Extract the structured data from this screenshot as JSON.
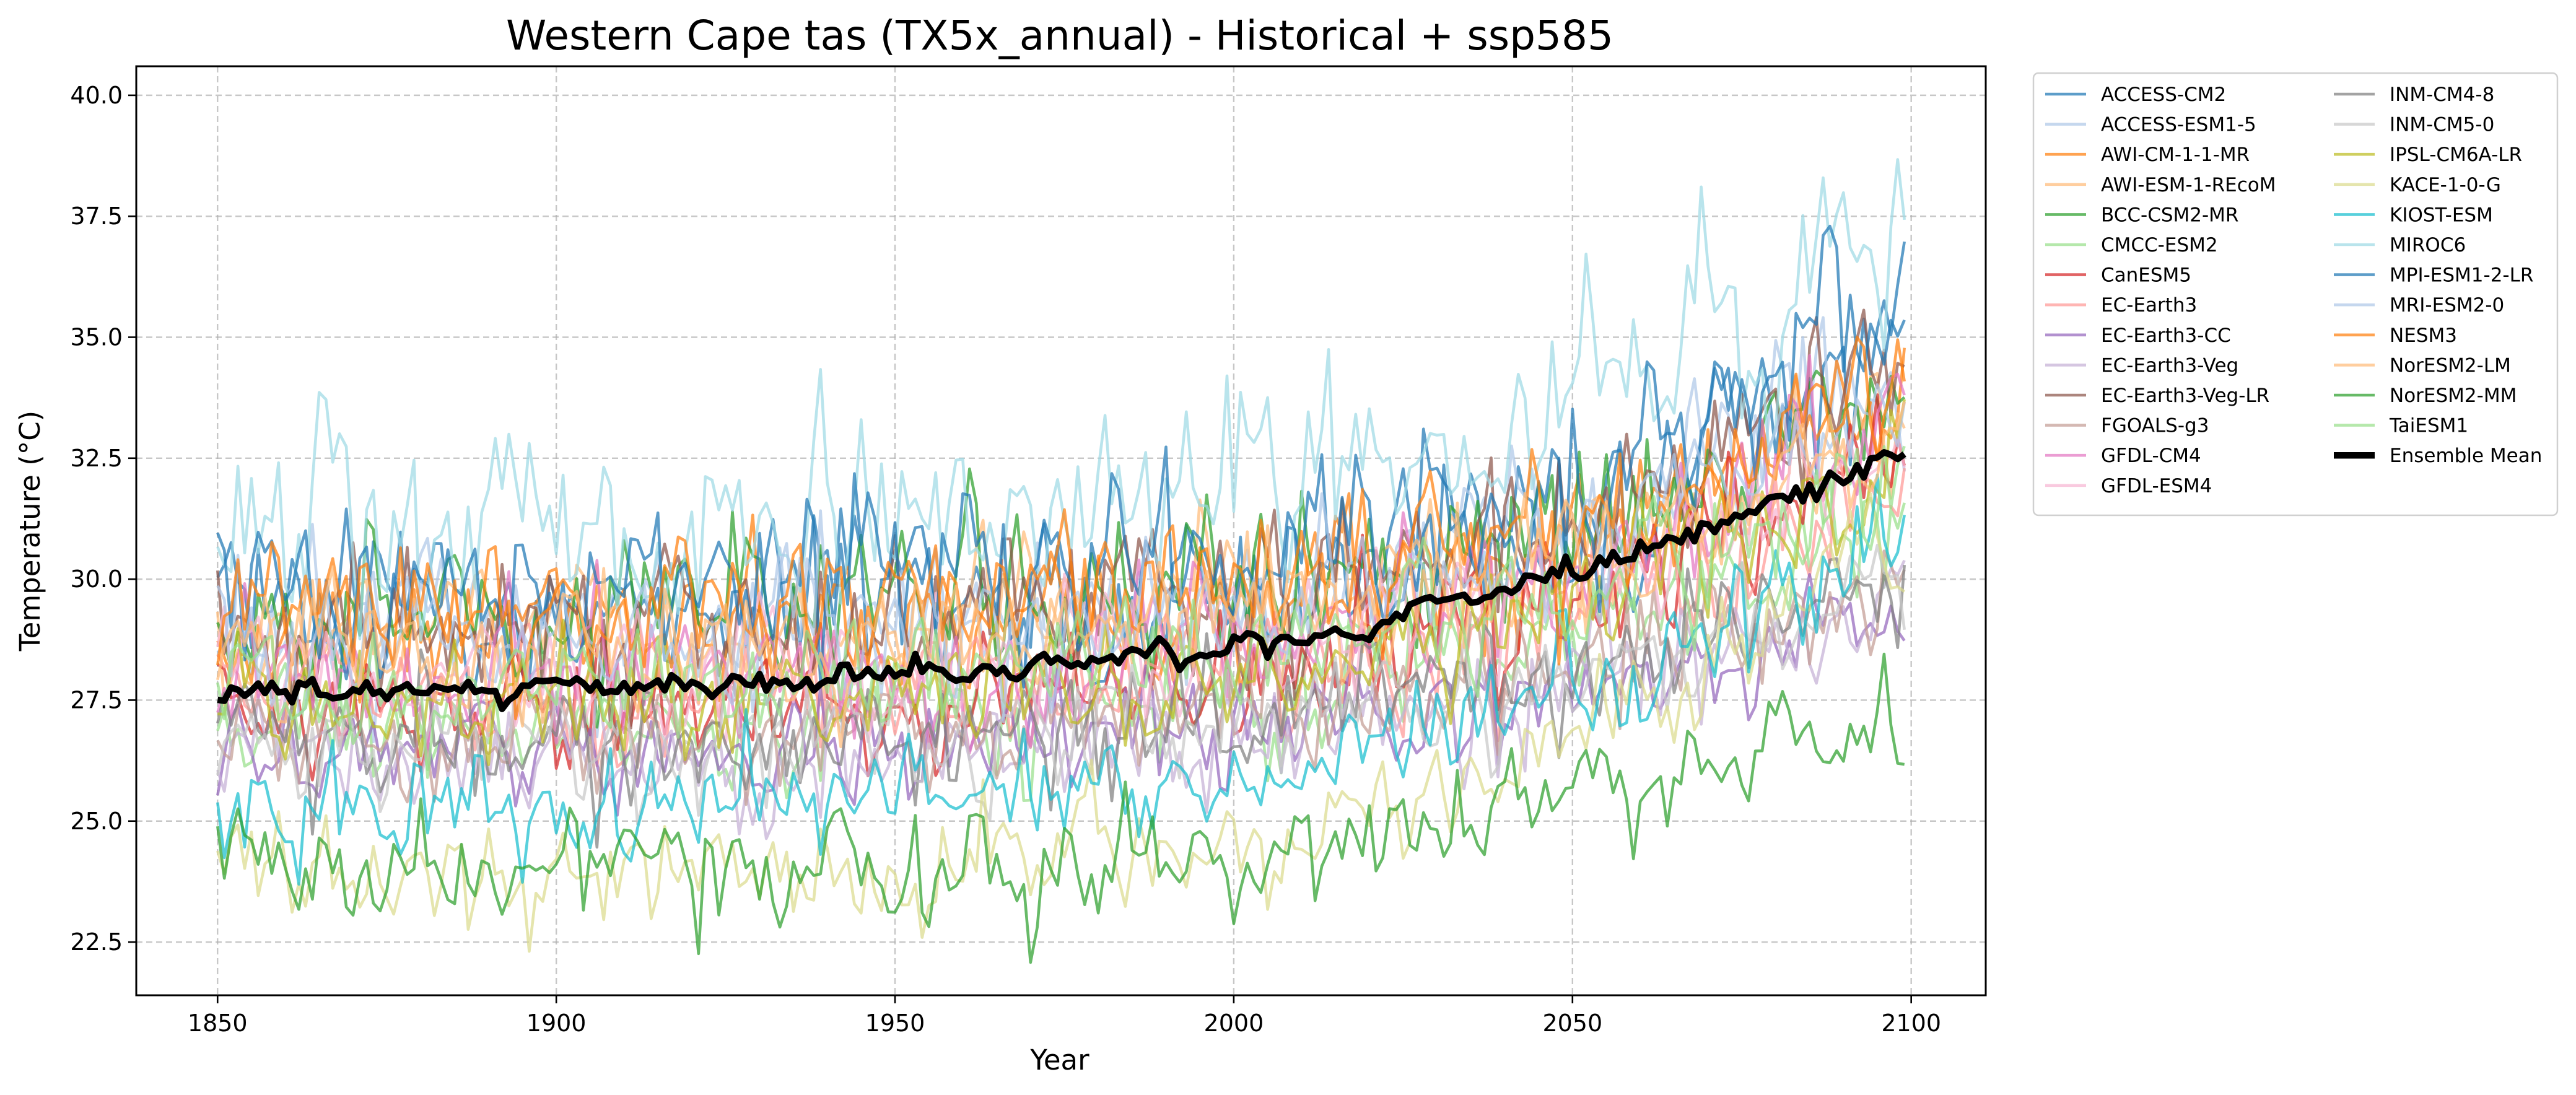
{
  "chart_data": {
    "type": "line",
    "title": "Western Cape tas (TX5x_annual) - Historical + ssp585",
    "xlabel": "Year",
    "ylabel": "Temperature (°C)",
    "xlim": [
      1838,
      2111
    ],
    "ylim": [
      21.4,
      40.6
    ],
    "x_ticks": [
      1850,
      1900,
      1950,
      2000,
      2050,
      2100
    ],
    "y_ticks": [
      22.5,
      25.0,
      27.5,
      30.0,
      32.5,
      35.0,
      37.5,
      40.0
    ],
    "x_tick_labels": [
      "1850",
      "1900",
      "1950",
      "2000",
      "2050",
      "2100"
    ],
    "y_tick_labels": [
      "22.5",
      "25.0",
      "27.5",
      "30.0",
      "32.5",
      "35.0",
      "37.5",
      "40.0"
    ],
    "grid": true,
    "legend_position": "outside upper right",
    "legend_columns": 2,
    "x_start": 1850,
    "x_end": 2099,
    "series": [
      {
        "name": "ACCESS-CM2",
        "color": "#1f77b4",
        "anchors": [
          [
            1850,
            29.6
          ],
          [
            1900,
            29.3
          ],
          [
            1950,
            29.5
          ],
          [
            2000,
            29.9
          ],
          [
            2050,
            31.2
          ],
          [
            2099,
            34.8
          ]
        ],
        "variability": 1.3
      },
      {
        "name": "ACCESS-ESM1-5",
        "color": "#aec7e8",
        "anchors": [
          [
            1850,
            29.1
          ],
          [
            1900,
            29.0
          ],
          [
            1950,
            29.2
          ],
          [
            2000,
            29.6
          ],
          [
            2050,
            31.0
          ],
          [
            2099,
            34.0
          ]
        ],
        "variability": 1.2
      },
      {
        "name": "AWI-CM-1-1-MR",
        "color": "#ff7f0e",
        "anchors": [
          [
            1850,
            28.8
          ],
          [
            1900,
            28.7
          ],
          [
            1950,
            28.9
          ],
          [
            2000,
            29.4
          ],
          [
            2050,
            30.8
          ],
          [
            2099,
            33.6
          ]
        ],
        "variability": 1.1
      },
      {
        "name": "AWI-ESM-1-REcoM",
        "color": "#ffbb78",
        "anchors": [
          [
            1850,
            28.9
          ],
          [
            1900,
            28.8
          ],
          [
            1950,
            29.0
          ],
          [
            2000,
            29.3
          ],
          [
            2050,
            30.5
          ],
          [
            2099,
            33.0
          ]
        ],
        "variability": 1.1
      },
      {
        "name": "BCC-CSM2-MR",
        "color": "#2ca02c",
        "anchors": [
          [
            1850,
            29.2
          ],
          [
            1900,
            29.1
          ],
          [
            1950,
            29.4
          ],
          [
            2000,
            29.8
          ],
          [
            2050,
            31.0
          ],
          [
            2099,
            33.9
          ]
        ],
        "variability": 1.2
      },
      {
        "name": "CMCC-ESM2",
        "color": "#98df8a",
        "anchors": [
          [
            1850,
            27.0
          ],
          [
            1900,
            26.9
          ],
          [
            1950,
            27.1
          ],
          [
            2000,
            27.5
          ],
          [
            2050,
            28.8
          ],
          [
            2099,
            31.5
          ]
        ],
        "variability": 1.0
      },
      {
        "name": "CanESM5",
        "color": "#d62728",
        "anchors": [
          [
            1850,
            27.2
          ],
          [
            1900,
            27.1
          ],
          [
            1950,
            27.4
          ],
          [
            2000,
            27.9
          ],
          [
            2050,
            29.5
          ],
          [
            2099,
            32.6
          ]
        ],
        "variability": 1.0
      },
      {
        "name": "EC-Earth3",
        "color": "#ff9896",
        "anchors": [
          [
            1850,
            27.6
          ],
          [
            1900,
            27.5
          ],
          [
            1950,
            27.7
          ],
          [
            2000,
            28.1
          ],
          [
            2050,
            29.4
          ],
          [
            2099,
            32.0
          ]
        ],
        "variability": 1.0
      },
      {
        "name": "EC-Earth3-CC",
        "color": "#9467bd",
        "anchors": [
          [
            1850,
            26.5
          ],
          [
            1900,
            26.4
          ],
          [
            1950,
            26.6
          ],
          [
            2000,
            26.9
          ],
          [
            2050,
            27.8
          ],
          [
            2099,
            29.4
          ]
        ],
        "variability": 0.9
      },
      {
        "name": "EC-Earth3-Veg",
        "color": "#c5b0d5",
        "anchors": [
          [
            1850,
            26.3
          ],
          [
            1900,
            26.2
          ],
          [
            1950,
            26.4
          ],
          [
            2000,
            26.8
          ],
          [
            2050,
            27.9
          ],
          [
            2099,
            29.8
          ]
        ],
        "variability": 0.9
      },
      {
        "name": "EC-Earth3-Veg-LR",
        "color": "#8c564b",
        "anchors": [
          [
            1850,
            29.0
          ],
          [
            1900,
            28.9
          ],
          [
            1950,
            29.2
          ],
          [
            2000,
            29.7
          ],
          [
            2050,
            31.1
          ],
          [
            2099,
            35.0
          ]
        ],
        "variability": 1.2
      },
      {
        "name": "FGOALS-g3",
        "color": "#c49c94",
        "anchors": [
          [
            1850,
            26.8
          ],
          [
            1900,
            26.7
          ],
          [
            1950,
            26.9
          ],
          [
            2000,
            27.2
          ],
          [
            2050,
            28.3
          ],
          [
            2099,
            30.2
          ]
        ],
        "variability": 0.9
      },
      {
        "name": "GFDL-CM4",
        "color": "#e377c2",
        "anchors": [
          [
            1850,
            28.0
          ],
          [
            1900,
            27.9
          ],
          [
            1950,
            28.1
          ],
          [
            2000,
            28.5
          ],
          [
            2050,
            30.0
          ],
          [
            2099,
            33.2
          ]
        ],
        "variability": 1.0
      },
      {
        "name": "GFDL-ESM4",
        "color": "#f7b6d2",
        "anchors": [
          [
            1850,
            28.2
          ],
          [
            1900,
            28.1
          ],
          [
            1950,
            28.3
          ],
          [
            2000,
            28.6
          ],
          [
            2050,
            29.9
          ],
          [
            2099,
            32.8
          ]
        ],
        "variability": 1.0
      },
      {
        "name": "INM-CM4-8",
        "color": "#7f7f7f",
        "anchors": [
          [
            1850,
            26.6
          ],
          [
            1900,
            26.5
          ],
          [
            1950,
            26.7
          ],
          [
            2000,
            27.0
          ],
          [
            2050,
            28.1
          ],
          [
            2099,
            30.0
          ]
        ],
        "variability": 0.9
      },
      {
        "name": "INM-CM5-0",
        "color": "#c7c7c7",
        "anchors": [
          [
            1850,
            26.4
          ],
          [
            1900,
            26.3
          ],
          [
            1950,
            26.5
          ],
          [
            2000,
            26.9
          ],
          [
            2050,
            28.0
          ],
          [
            2099,
            29.8
          ]
        ],
        "variability": 0.9
      },
      {
        "name": "IPSL-CM6A-LR",
        "color": "#bcbd22",
        "anchors": [
          [
            1850,
            27.4
          ],
          [
            1900,
            27.3
          ],
          [
            1950,
            27.6
          ],
          [
            2000,
            28.0
          ],
          [
            2050,
            29.6
          ],
          [
            2099,
            32.4
          ]
        ],
        "variability": 1.0
      },
      {
        "name": "KACE-1-0-G",
        "color": "#dbdb8d",
        "anchors": [
          [
            1850,
            24.0
          ],
          [
            1900,
            24.0
          ],
          [
            1950,
            24.2
          ],
          [
            2000,
            24.6
          ],
          [
            2050,
            26.8
          ],
          [
            2099,
            31.0
          ]
        ],
        "variability": 0.9
      },
      {
        "name": "KIOST-ESM",
        "color": "#17becf",
        "anchors": [
          [
            1850,
            25.4
          ],
          [
            1900,
            25.4
          ],
          [
            1950,
            25.6
          ],
          [
            2000,
            26.0
          ],
          [
            2050,
            27.6
          ],
          [
            2099,
            30.8
          ]
        ],
        "variability": 0.9
      },
      {
        "name": "MIROC6",
        "color": "#9edae5",
        "anchors": [
          [
            1850,
            31.0
          ],
          [
            1900,
            31.0
          ],
          [
            1950,
            31.3
          ],
          [
            2000,
            31.8
          ],
          [
            2050,
            33.5
          ],
          [
            2099,
            37.0
          ]
        ],
        "variability": 1.5
      },
      {
        "name": "MPI-ESM1-2-LR",
        "color": "#1f77b4",
        "anchors": [
          [
            1850,
            29.8
          ],
          [
            1900,
            29.7
          ],
          [
            1950,
            30.0
          ],
          [
            2000,
            30.5
          ],
          [
            2050,
            32.0
          ],
          [
            2099,
            35.6
          ]
        ],
        "variability": 1.3
      },
      {
        "name": "MRI-ESM2-0",
        "color": "#aec7e8",
        "anchors": [
          [
            1850,
            28.6
          ],
          [
            1900,
            28.5
          ],
          [
            1950,
            28.8
          ],
          [
            2000,
            29.2
          ],
          [
            2050,
            30.8
          ],
          [
            2099,
            33.8
          ]
        ],
        "variability": 1.1
      },
      {
        "name": "NESM3",
        "color": "#ff7f0e",
        "anchors": [
          [
            1850,
            29.4
          ],
          [
            1900,
            29.3
          ],
          [
            1950,
            29.5
          ],
          [
            2000,
            29.9
          ],
          [
            2050,
            31.2
          ],
          [
            2099,
            34.2
          ]
        ],
        "variability": 1.2
      },
      {
        "name": "NorESM2-LM",
        "color": "#ffbb78",
        "anchors": [
          [
            1850,
            28.5
          ],
          [
            1900,
            28.4
          ],
          [
            1950,
            28.6
          ],
          [
            2000,
            29.0
          ],
          [
            2050,
            30.4
          ],
          [
            2099,
            33.2
          ]
        ],
        "variability": 1.1
      },
      {
        "name": "NorESM2-MM",
        "color": "#2ca02c",
        "anchors": [
          [
            1850,
            24.0
          ],
          [
            1900,
            23.9
          ],
          [
            1950,
            24.1
          ],
          [
            2000,
            24.4
          ],
          [
            2050,
            25.6
          ],
          [
            2099,
            26.8
          ]
        ],
        "variability": 0.9
      },
      {
        "name": "TaiESM1",
        "color": "#98df8a",
        "anchors": [
          [
            1850,
            27.8
          ],
          [
            1900,
            27.7
          ],
          [
            1950,
            27.9
          ],
          [
            2000,
            28.3
          ],
          [
            2050,
            29.7
          ],
          [
            2099,
            32.3
          ]
        ],
        "variability": 1.0
      }
    ],
    "ensemble_mean": {
      "name": "Ensemble Mean",
      "color": "#000000",
      "anchors": [
        [
          1850,
          27.6
        ],
        [
          1860,
          27.6
        ],
        [
          1870,
          27.7
        ],
        [
          1880,
          27.7
        ],
        [
          1890,
          27.7
        ],
        [
          1900,
          27.8
        ],
        [
          1910,
          27.7
        ],
        [
          1920,
          27.8
        ],
        [
          1930,
          27.9
        ],
        [
          1940,
          28.0
        ],
        [
          1950,
          28.0
        ],
        [
          1960,
          28.0
        ],
        [
          1970,
          28.1
        ],
        [
          1980,
          28.4
        ],
        [
          1990,
          28.5
        ],
        [
          2000,
          28.6
        ],
        [
          2010,
          28.8
        ],
        [
          2020,
          28.9
        ],
        [
          2030,
          29.5
        ],
        [
          2040,
          29.9
        ],
        [
          2050,
          30.1
        ],
        [
          2060,
          30.6
        ],
        [
          2070,
          31.0
        ],
        [
          2080,
          31.6
        ],
        [
          2090,
          32.2
        ],
        [
          2099,
          32.6
        ]
      ],
      "variability": 0.22
    }
  }
}
